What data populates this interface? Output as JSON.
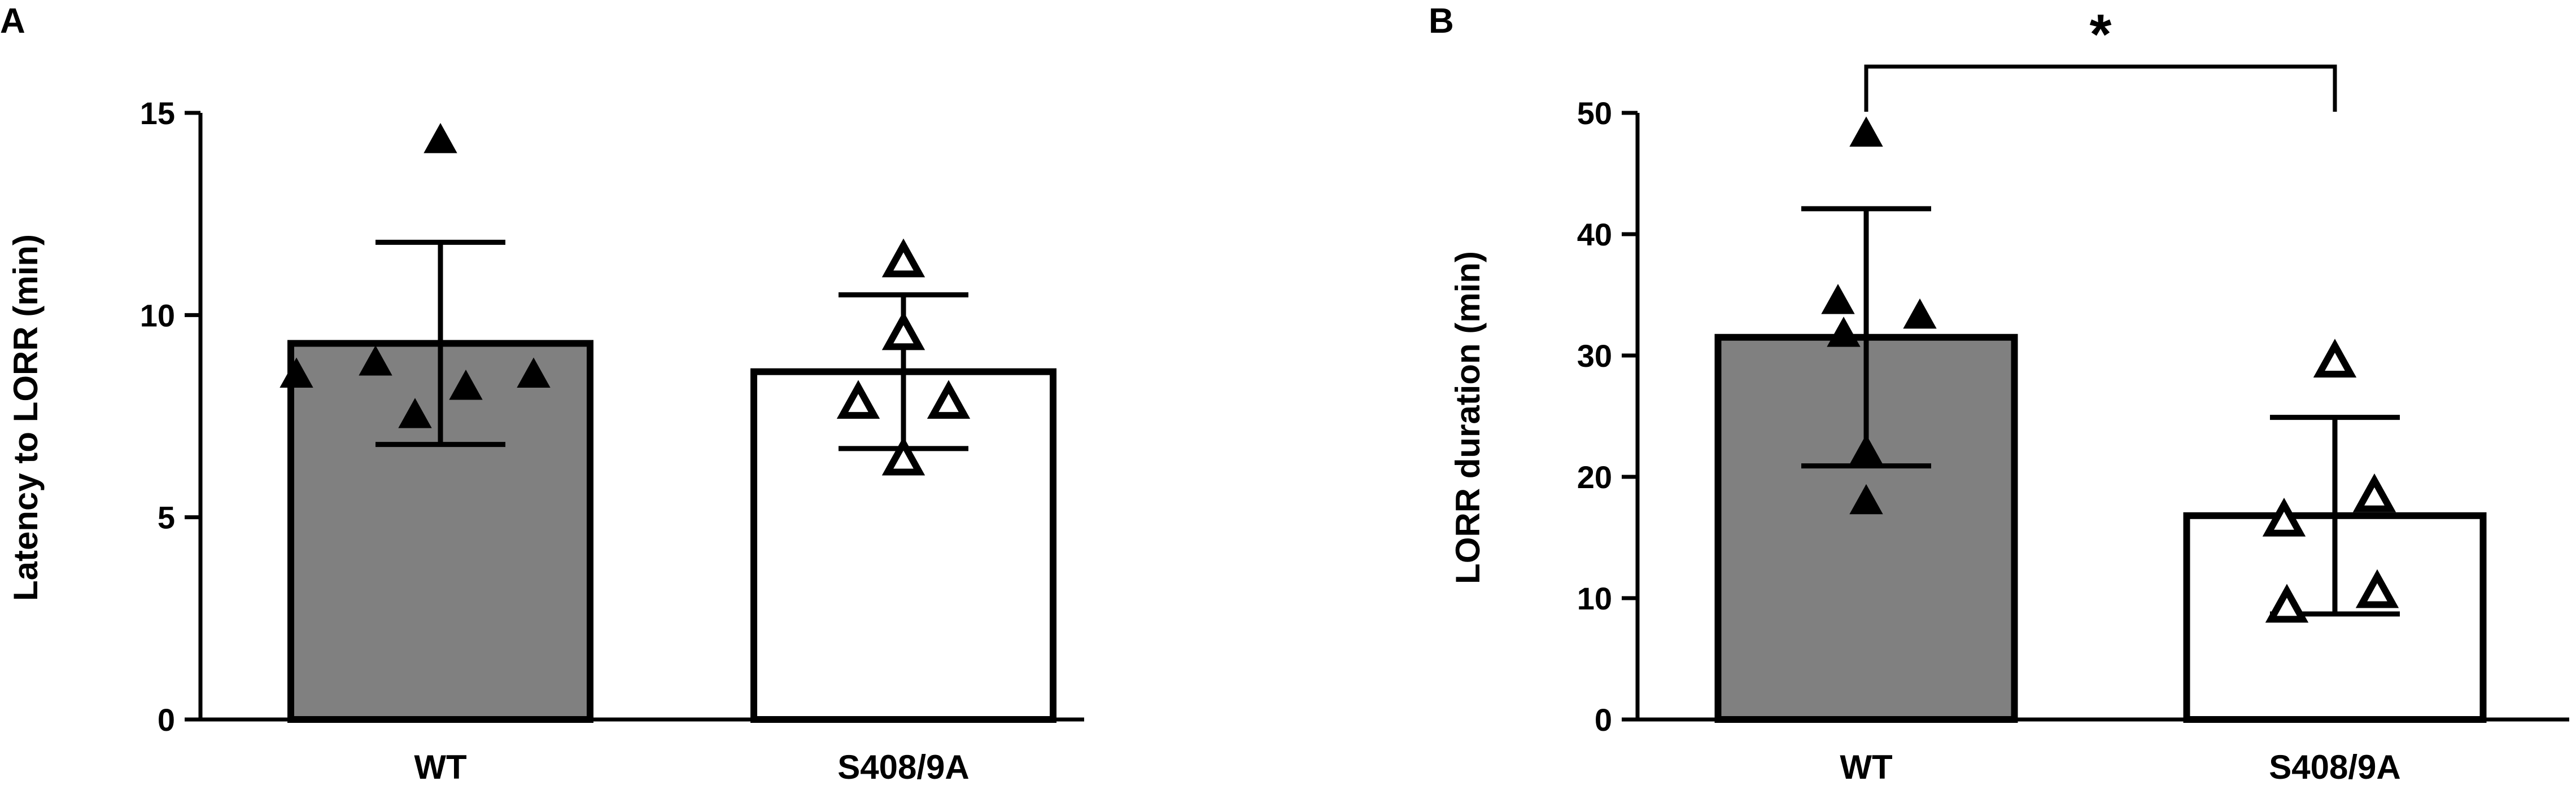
{
  "colors": {
    "wt_fill": "#808080",
    "mut_fill": "#ffffff",
    "stroke": "#000000"
  },
  "chart_data": [
    {
      "panel": "A",
      "type": "bar",
      "ylabel": "Latency to LORR (min)",
      "ylim": [
        0,
        15
      ],
      "yticks": [
        0,
        5,
        10,
        15
      ],
      "categories": [
        "WT",
        "S408/9A"
      ],
      "values": [
        9.3,
        8.6
      ],
      "error_low": [
        6.8,
        6.7
      ],
      "error_high": [
        11.8,
        10.5
      ],
      "points": [
        [
          14.3,
          8.5,
          8.8,
          7.5,
          8.2,
          8.5
        ],
        [
          11.3,
          9.5,
          7.8,
          7.8,
          6.4
        ]
      ],
      "marker_fill": [
        "filled",
        "open"
      ],
      "significance": null
    },
    {
      "panel": "B",
      "type": "bar",
      "ylabel": "LORR duration (min)",
      "ylim": [
        0,
        50
      ],
      "yticks": [
        0,
        10,
        20,
        30,
        40,
        50
      ],
      "categories": [
        "WT",
        "S408/9A"
      ],
      "values": [
        31.5,
        16.8
      ],
      "error_low": [
        20.9,
        8.7
      ],
      "error_high": [
        42.1,
        24.9
      ],
      "points": [
        [
          48.2,
          34.4,
          33.2,
          31.7,
          22.0,
          17.9
        ],
        [
          29.4,
          18.3,
          16.3,
          10.4,
          9.2
        ]
      ],
      "marker_fill": [
        "filled",
        "open"
      ],
      "significance": "*"
    }
  ]
}
